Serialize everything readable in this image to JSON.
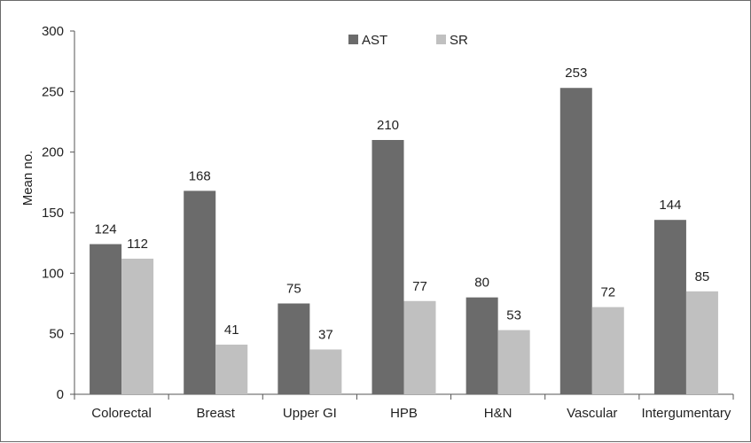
{
  "chart_data": {
    "type": "bar",
    "title": "",
    "xlabel": "",
    "ylabel": "Mean no.",
    "ylim": [
      0,
      300
    ],
    "yticks": [
      0,
      50,
      100,
      150,
      200,
      250,
      300
    ],
    "grid": false,
    "legend_position": "top-center",
    "categories": [
      "Colorectal",
      "Breast",
      "Upper GI",
      "HPB",
      "H&N",
      "Vascular",
      "Intergumentary"
    ],
    "series": [
      {
        "name": "AST",
        "color": "#6b6b6b",
        "values": [
          124,
          168,
          75,
          210,
          80,
          253,
          144
        ]
      },
      {
        "name": "SR",
        "color": "#c0c0c0",
        "values": [
          112,
          41,
          37,
          77,
          53,
          72,
          85
        ]
      }
    ]
  }
}
